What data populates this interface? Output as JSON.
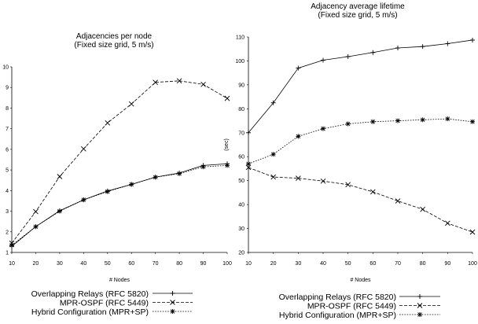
{
  "chart_data": [
    {
      "type": "line",
      "title": "Adjacencies per node",
      "subtitle": "(Fixed size grid, 5 m/s)",
      "xlabel": "# Nodes",
      "ylabel": "",
      "x": [
        10,
        20,
        30,
        40,
        50,
        60,
        70,
        80,
        90,
        100
      ],
      "xlim": [
        10,
        100
      ],
      "ylim": [
        1,
        10
      ],
      "yticks": [
        1,
        2,
        3,
        4,
        5,
        6,
        7,
        8,
        9,
        10
      ],
      "grid": false,
      "legend_position": "bottom",
      "series": [
        {
          "name": "Overlapping Relays (RFC 5820)",
          "marker": "plus",
          "dash": "solid",
          "values": [
            1.3,
            2.25,
            3.02,
            3.55,
            3.98,
            4.3,
            4.65,
            4.85,
            5.22,
            5.3
          ]
        },
        {
          "name": "MPR-OSPF (RFC 5449)",
          "marker": "cross",
          "dash": "dashed",
          "values": [
            1.45,
            2.98,
            4.68,
            6.02,
            7.28,
            8.2,
            9.25,
            9.32,
            9.15,
            8.47
          ]
        },
        {
          "name": "Hybrid Configuration (MPR+SP)",
          "marker": "star",
          "dash": "dotted",
          "values": [
            1.35,
            2.25,
            3.0,
            3.55,
            3.95,
            4.3,
            4.65,
            4.82,
            5.15,
            5.22
          ]
        }
      ]
    },
    {
      "type": "line",
      "title": "Adjacency average lifetime",
      "subtitle": "(Fixed size grid, 5 m/s)",
      "xlabel": "# Nodes",
      "ylabel": "(sec)",
      "x": [
        10,
        20,
        30,
        40,
        50,
        60,
        70,
        80,
        90,
        100
      ],
      "xlim": [
        10,
        100
      ],
      "ylim": [
        20,
        110
      ],
      "yticks": [
        20,
        30,
        40,
        50,
        60,
        70,
        80,
        90,
        100,
        110
      ],
      "grid": false,
      "legend_position": "bottom",
      "series": [
        {
          "name": "Overlapping Relays (RFC 5820)",
          "marker": "plus",
          "dash": "solid",
          "values": [
            70,
            82.5,
            97,
            100.3,
            101.8,
            103.5,
            105.4,
            106,
            107.2,
            108.7
          ]
        },
        {
          "name": "MPR-OSPF (RFC 5449)",
          "marker": "cross",
          "dash": "dashed",
          "values": [
            55.5,
            51.5,
            51,
            49.8,
            48.3,
            45.3,
            41.5,
            38,
            32.2,
            28.5
          ]
        },
        {
          "name": "Hybrid Configuration (MPR+SP)",
          "marker": "star",
          "dash": "dotted",
          "values": [
            57,
            61,
            68.5,
            71.7,
            73.7,
            74.6,
            75,
            75.4,
            75.8,
            74.6
          ]
        }
      ]
    }
  ]
}
